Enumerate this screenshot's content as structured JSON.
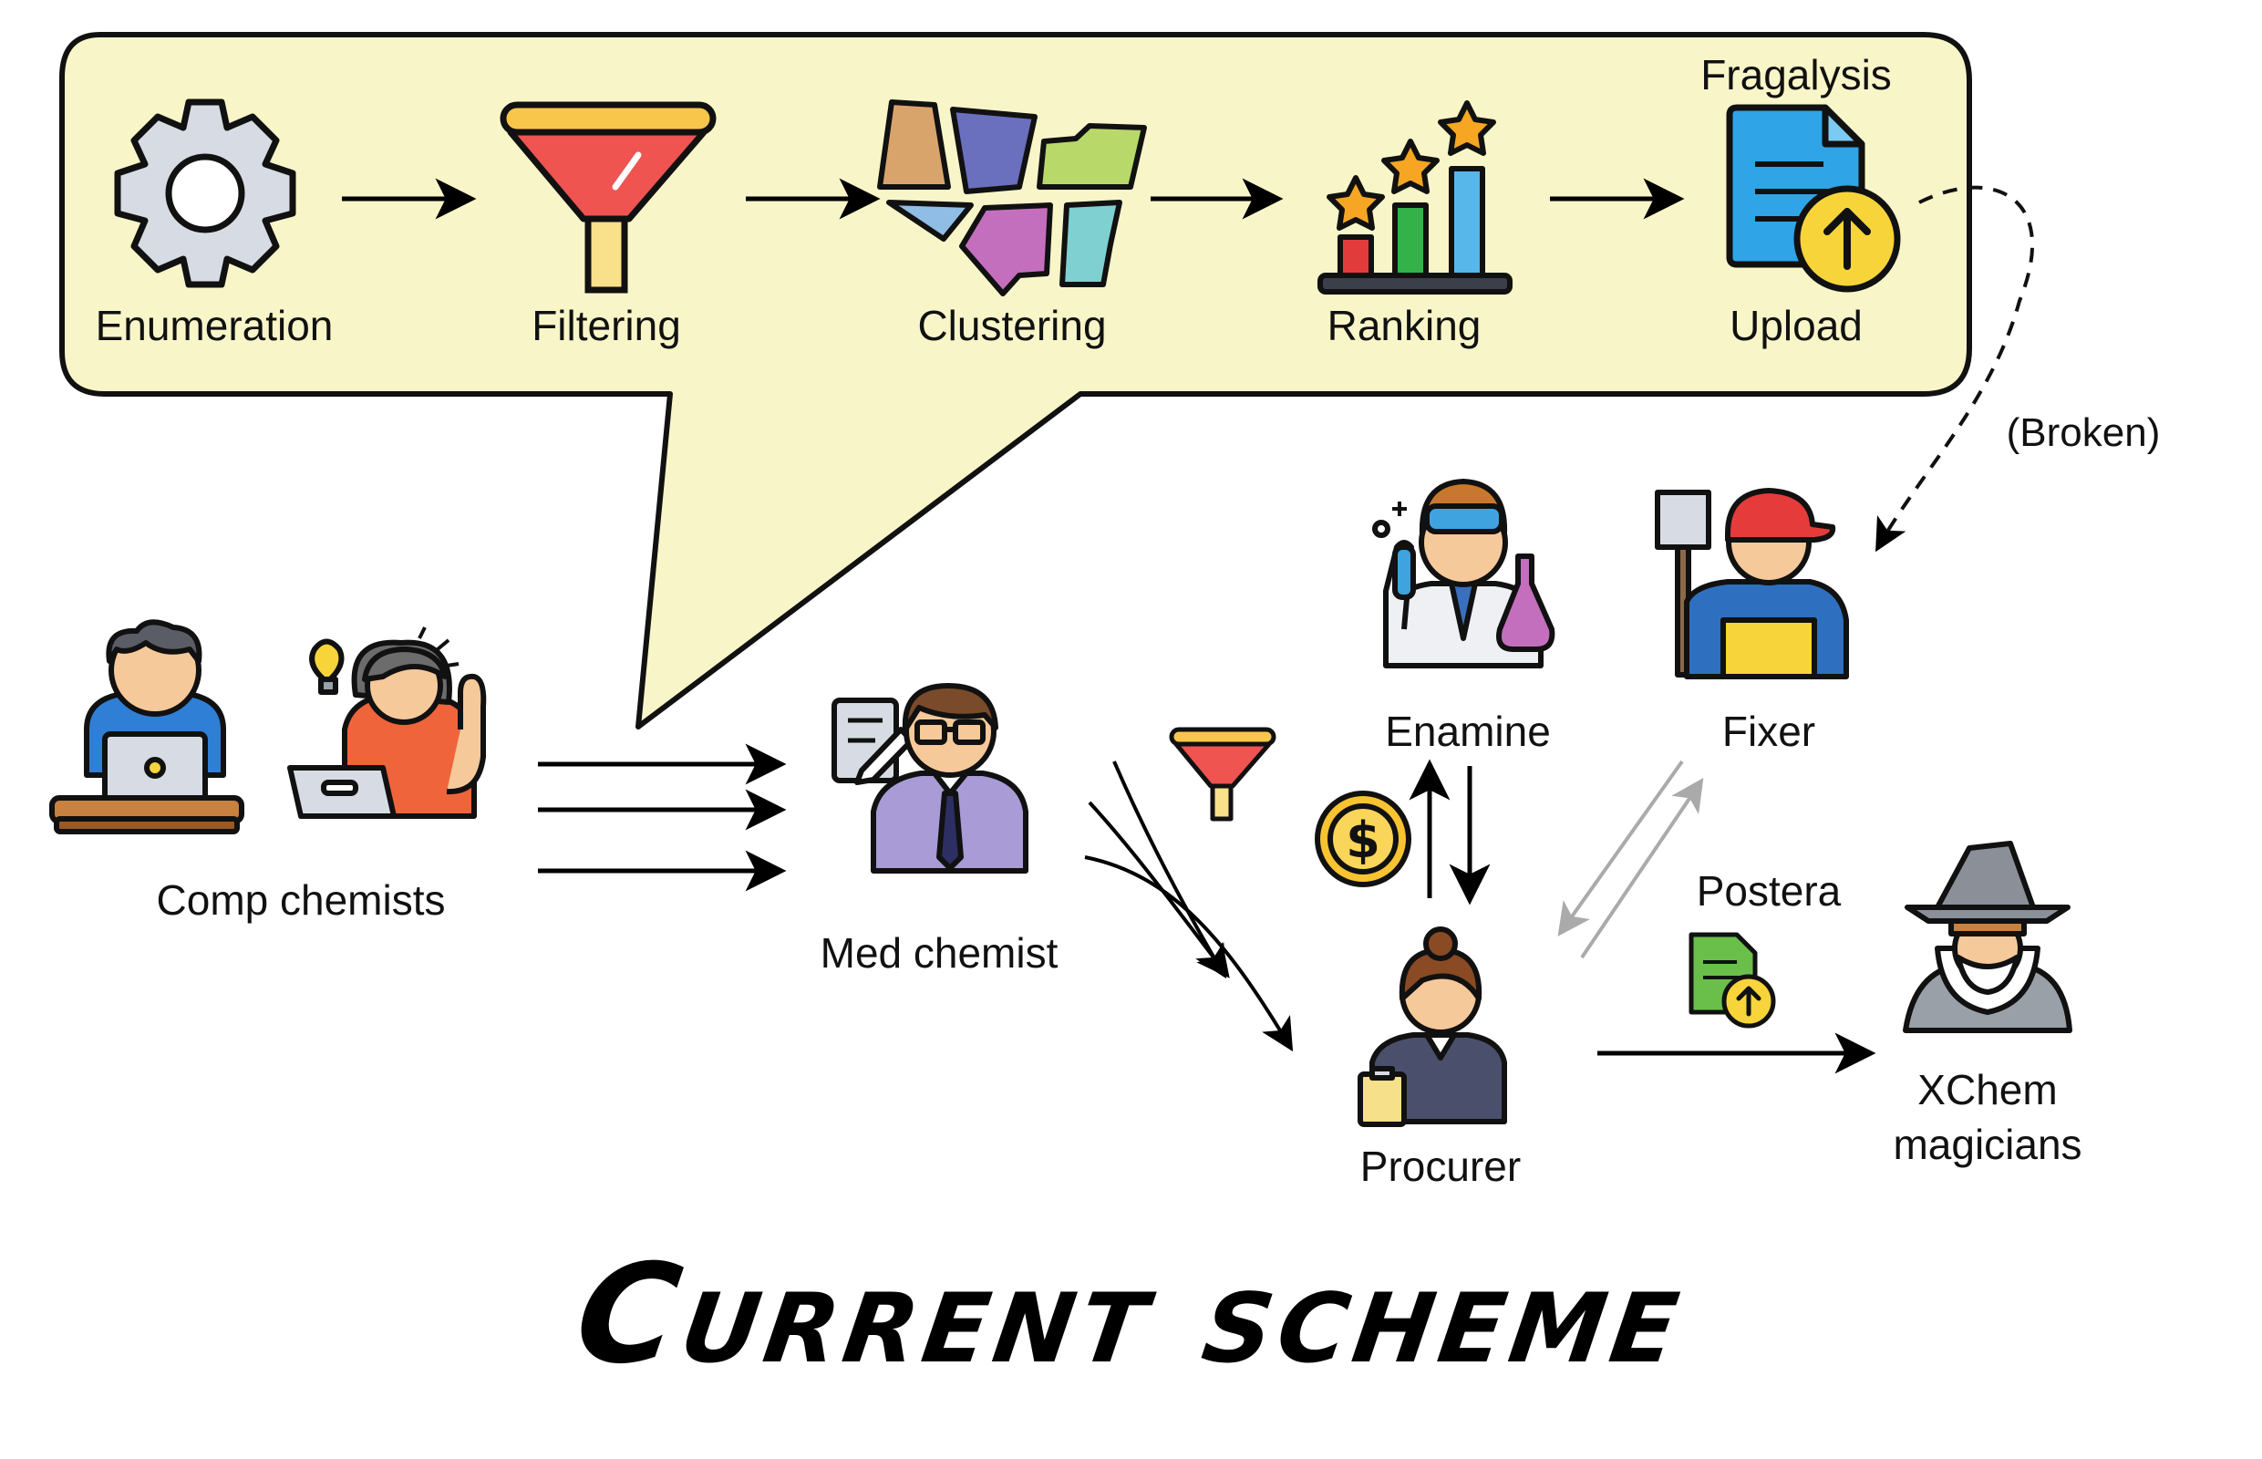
{
  "pipeline": {
    "steps": [
      {
        "label": "Enumeration"
      },
      {
        "label": "Filtering"
      },
      {
        "label": "Clustering"
      },
      {
        "label": "Ranking"
      },
      {
        "label": "Upload"
      }
    ],
    "destination_label": "Fragalysis",
    "bubble_color": "#f8f6c8"
  },
  "roles": {
    "comp_chemists": "Comp chemists",
    "med_chemist": "Med chemist",
    "enamine": "Enamine",
    "fixer": "Fixer",
    "procurer": "Procurer",
    "xchem": "XChem magicians",
    "postera": "Postera"
  },
  "broken_label": "(Broken)",
  "title": "Current scheme",
  "icons": [
    "gear-icon",
    "funnel-icon",
    "clusters-icon",
    "ranking-icon",
    "document-upload-icon",
    "comp-chemist-man-icon",
    "comp-chemist-woman-icon",
    "med-chemist-icon",
    "scientist-icon",
    "fixer-icon",
    "procurer-icon",
    "wizard-icon",
    "coin-icon",
    "small-funnel-icon",
    "postera-upload-icon"
  ]
}
